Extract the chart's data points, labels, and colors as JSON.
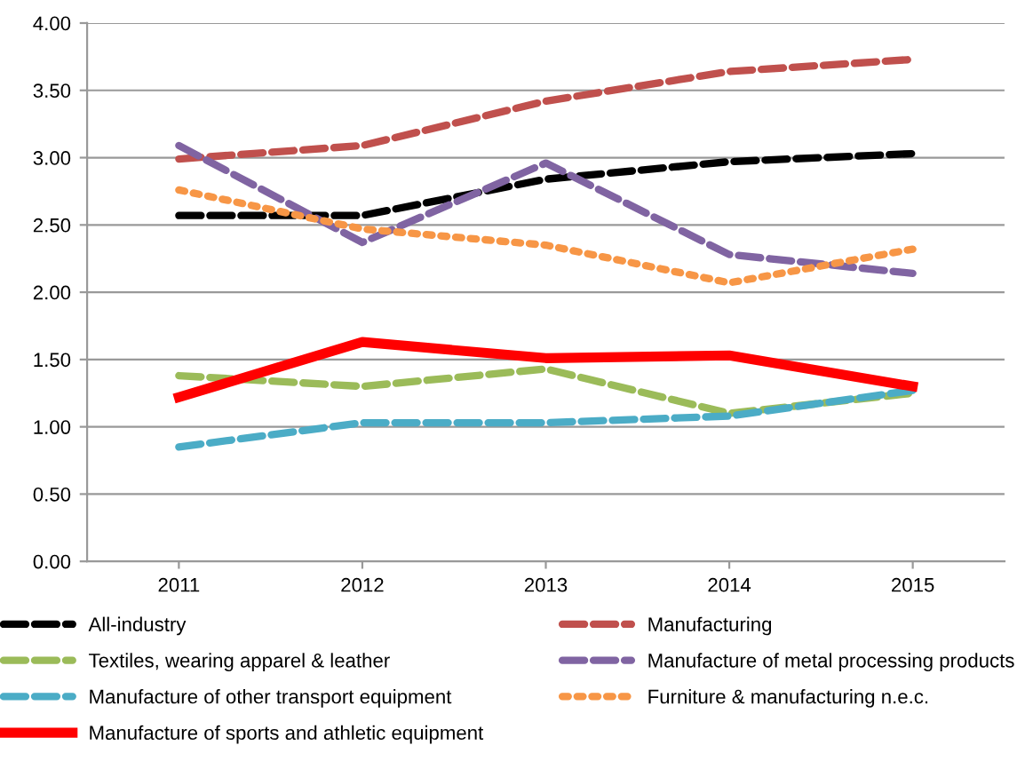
{
  "chart_data": {
    "type": "line",
    "categories": [
      "2011",
      "2012",
      "2013",
      "2014",
      "2015"
    ],
    "series": [
      {
        "name": "All-industry",
        "color": "#000000",
        "line_style": "dashed",
        "values": [
          2.57,
          2.57,
          2.84,
          2.97,
          3.03
        ]
      },
      {
        "name": "Manufacturing",
        "color": "#c0504d",
        "line_style": "dashed",
        "values": [
          2.99,
          3.09,
          3.42,
          3.64,
          3.73
        ]
      },
      {
        "name": "Textiles, wearing apparel & leather",
        "color": "#9bbb59",
        "line_style": "dashed",
        "values": [
          1.38,
          1.3,
          1.43,
          1.1,
          1.25
        ]
      },
      {
        "name": "Manufacture of metal processing products",
        "color": "#8064a2",
        "line_style": "dashed",
        "values": [
          3.09,
          2.37,
          2.96,
          2.28,
          2.14
        ]
      },
      {
        "name": "Manufacture of other transport equipment",
        "color": "#4bacc6",
        "line_style": "dashed",
        "values": [
          0.85,
          1.03,
          1.03,
          1.08,
          1.27
        ]
      },
      {
        "name": "Furniture & manufacturing n.e.c.",
        "color": "#f79646",
        "line_style": "dotted",
        "values": [
          2.76,
          2.47,
          2.35,
          2.07,
          2.32
        ]
      },
      {
        "name": "Manufacture of sports and athletic equipment",
        "color": "#ff0000",
        "line_style": "solid",
        "values": [
          1.22,
          1.63,
          1.51,
          1.53,
          1.3
        ]
      }
    ],
    "ylim": [
      0,
      4
    ],
    "yticks": [
      {
        "value": 0,
        "label": "0.00"
      },
      {
        "value": 0.5,
        "label": "0.50"
      },
      {
        "value": 1,
        "label": "1.00"
      },
      {
        "value": 1.5,
        "label": "1.50"
      },
      {
        "value": 2,
        "label": "2.00"
      },
      {
        "value": 2.5,
        "label": "2.50"
      },
      {
        "value": 3,
        "label": "3.00"
      },
      {
        "value": 3.5,
        "label": "3.50"
      },
      {
        "value": 4,
        "label": "4.00"
      }
    ],
    "grid": "y",
    "legend": "bottom",
    "marker": "none"
  }
}
